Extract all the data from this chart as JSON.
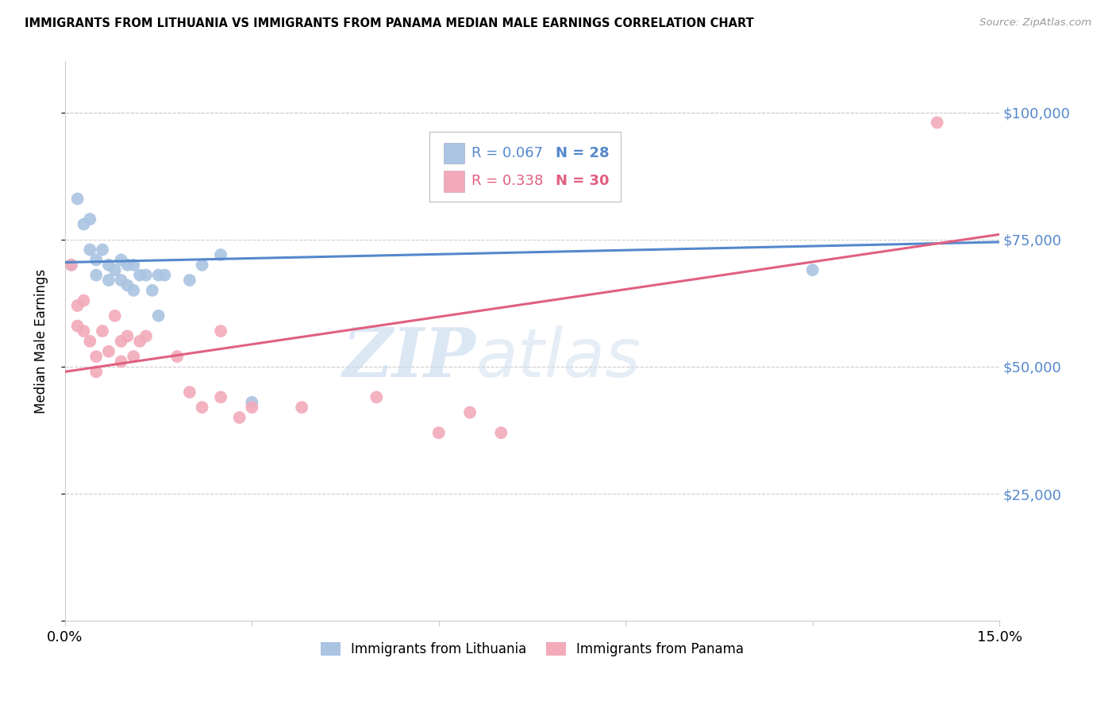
{
  "title": "IMMIGRANTS FROM LITHUANIA VS IMMIGRANTS FROM PANAMA MEDIAN MALE EARNINGS CORRELATION CHART",
  "source": "Source: ZipAtlas.com",
  "ylabel": "Median Male Earnings",
  "xlim": [
    0.0,
    0.15
  ],
  "ylim": [
    0,
    110000
  ],
  "yticks": [
    0,
    25000,
    50000,
    75000,
    100000
  ],
  "ytick_labels": [
    "",
    "$25,000",
    "$50,000",
    "$75,000",
    "$100,000"
  ],
  "watermark_zip": "ZIP",
  "watermark_atlas": "atlas",
  "legend_blue_r": "R = 0.067",
  "legend_blue_n": "N = 28",
  "legend_pink_r": "R = 0.338",
  "legend_pink_n": "N = 30",
  "legend_label_blue": "Immigrants from Lithuania",
  "legend_label_pink": "Immigrants from Panama",
  "blue_scatter_color": "#aac4e2",
  "pink_scatter_color": "#f2aaba",
  "line_blue_color": "#5588cc",
  "line_pink_color": "#e06080",
  "ytick_color": "#5588cc",
  "grid_color": "#cccccc",
  "lithuania_x": [
    0.001,
    0.002,
    0.003,
    0.004,
    0.004,
    0.005,
    0.005,
    0.006,
    0.007,
    0.007,
    0.008,
    0.009,
    0.009,
    0.01,
    0.01,
    0.011,
    0.011,
    0.012,
    0.013,
    0.014,
    0.015,
    0.015,
    0.016,
    0.02,
    0.022,
    0.025,
    0.03,
    0.12
  ],
  "lithuania_y": [
    70000,
    83000,
    78000,
    79000,
    73000,
    71000,
    68000,
    73000,
    70000,
    67000,
    69000,
    71000,
    67000,
    70000,
    66000,
    70000,
    65000,
    68000,
    68000,
    65000,
    68000,
    60000,
    68000,
    67000,
    70000,
    72000,
    43000,
    69000
  ],
  "panama_x": [
    0.001,
    0.002,
    0.002,
    0.003,
    0.003,
    0.004,
    0.005,
    0.005,
    0.006,
    0.007,
    0.008,
    0.009,
    0.009,
    0.01,
    0.011,
    0.012,
    0.013,
    0.018,
    0.02,
    0.022,
    0.025,
    0.025,
    0.028,
    0.03,
    0.038,
    0.05,
    0.06,
    0.065,
    0.07,
    0.14
  ],
  "panama_y": [
    70000,
    62000,
    58000,
    63000,
    57000,
    55000,
    52000,
    49000,
    57000,
    53000,
    60000,
    55000,
    51000,
    56000,
    52000,
    55000,
    56000,
    52000,
    45000,
    42000,
    44000,
    57000,
    40000,
    42000,
    42000,
    44000,
    37000,
    41000,
    37000,
    98000
  ],
  "blue_line_x": [
    0.0,
    0.15
  ],
  "blue_line_y": [
    70500,
    74500
  ],
  "pink_line_x": [
    0.0,
    0.15
  ],
  "pink_line_y": [
    49000,
    76000
  ]
}
